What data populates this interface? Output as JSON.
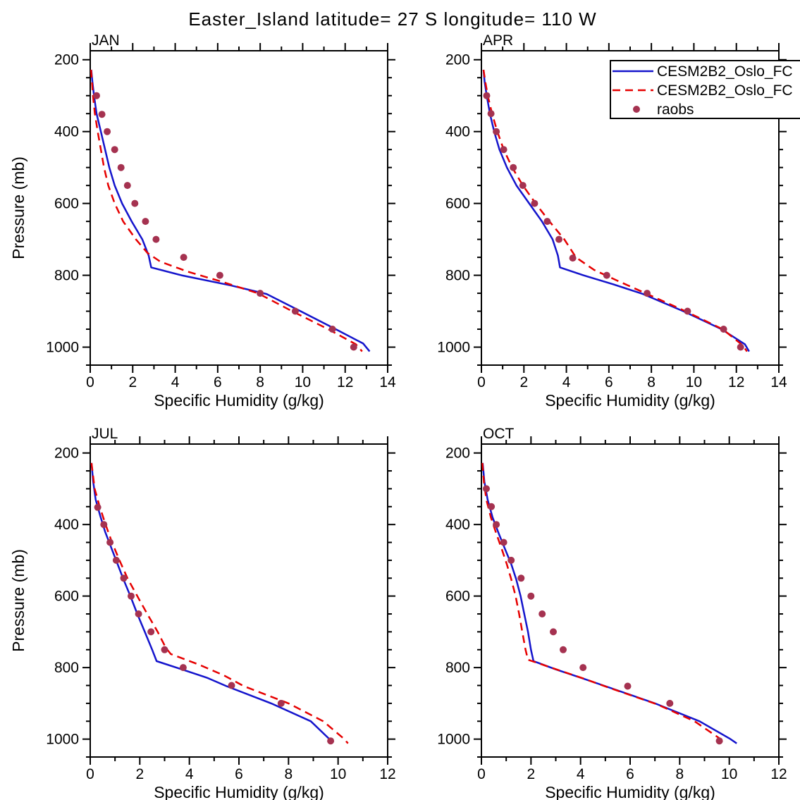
{
  "title": "Easter_Island  latitude= 27 S longitude= 110 W",
  "colors": {
    "model_solid": "#1414cc",
    "model_dashed": "#e60000",
    "obs": "#a53250"
  },
  "legend": {
    "entries": [
      {
        "label": "CESM2B2_Oslo_FC",
        "swatch": "line-solid",
        "color": "#1414cc"
      },
      {
        "label": "CESM2B2_Oslo_FC",
        "swatch": "line-dashed",
        "color": "#e60000"
      },
      {
        "label": "raobs",
        "swatch": "dot",
        "color": "#a53250"
      }
    ]
  },
  "chart_data": [
    {
      "type": "line",
      "panel": "JAN",
      "xlabel": "Specific Humidity (g/kg)",
      "ylabel": "Pressure (mb)",
      "xlim": [
        0,
        14
      ],
      "xticks": [
        0,
        2,
        4,
        6,
        8,
        10,
        12,
        14
      ],
      "xminor_step": 1,
      "ylim": [
        175,
        1050
      ],
      "yticks": [
        200,
        400,
        600,
        800,
        1000
      ],
      "yminor_step": 50,
      "grid": false,
      "series": [
        {
          "name": "CESM2B2_Oslo_FC (solid)",
          "style": "solid",
          "color": "#1414cc",
          "points": [
            [
              0.05,
              228
            ],
            [
              0.1,
              260
            ],
            [
              0.18,
              300
            ],
            [
              0.3,
              350
            ],
            [
              0.5,
              400
            ],
            [
              0.7,
              450
            ],
            [
              0.9,
              500
            ],
            [
              1.15,
              550
            ],
            [
              1.5,
              600
            ],
            [
              1.95,
              650
            ],
            [
              2.45,
              700
            ],
            [
              2.75,
              745
            ],
            [
              2.87,
              778
            ],
            [
              4.3,
              800
            ],
            [
              6.6,
              828
            ],
            [
              8.3,
              852
            ],
            [
              9.9,
              900
            ],
            [
              11.55,
              950
            ],
            [
              12.85,
              990
            ],
            [
              13.15,
              1012
            ]
          ]
        },
        {
          "name": "CESM2B2_Oslo_FC (dashed)",
          "style": "dashed",
          "color": "#e60000",
          "points": [
            [
              0.04,
              228
            ],
            [
              0.08,
              260
            ],
            [
              0.13,
              300
            ],
            [
              0.22,
              350
            ],
            [
              0.35,
              400
            ],
            [
              0.5,
              450
            ],
            [
              0.65,
              500
            ],
            [
              0.85,
              550
            ],
            [
              1.15,
              600
            ],
            [
              1.55,
              650
            ],
            [
              2.15,
              700
            ],
            [
              2.7,
              738
            ],
            [
              3.3,
              762
            ],
            [
              4.6,
              790
            ],
            [
              6.2,
              818
            ],
            [
              7.9,
              850
            ],
            [
              9.5,
              900
            ],
            [
              11.2,
              950
            ],
            [
              12.5,
              992
            ],
            [
              12.8,
              1012
            ]
          ]
        },
        {
          "name": "raobs",
          "style": "scatter",
          "color": "#a53250",
          "points": [
            [
              0.3,
              300
            ],
            [
              0.55,
              352
            ],
            [
              0.8,
              400
            ],
            [
              1.15,
              450
            ],
            [
              1.45,
              500
            ],
            [
              1.75,
              550
            ],
            [
              2.1,
              600
            ],
            [
              2.6,
              650
            ],
            [
              3.1,
              700
            ],
            [
              4.4,
              750
            ],
            [
              6.1,
              800
            ],
            [
              8.0,
              850
            ],
            [
              9.65,
              900
            ],
            [
              11.4,
              950
            ],
            [
              12.4,
              1000
            ]
          ]
        }
      ]
    },
    {
      "type": "line",
      "panel": "APR",
      "xlabel": "Specific Humidity (g/kg)",
      "ylabel": "",
      "xlim": [
        0,
        14
      ],
      "xticks": [
        0,
        2,
        4,
        6,
        8,
        10,
        12,
        14
      ],
      "xminor_step": 1,
      "ylim": [
        175,
        1050
      ],
      "yticks": [
        200,
        400,
        600,
        800,
        1000
      ],
      "yminor_step": 50,
      "grid": false,
      "series": [
        {
          "name": "CESM2B2_Oslo_FC (solid)",
          "style": "solid",
          "color": "#1414cc",
          "points": [
            [
              0.1,
              228
            ],
            [
              0.15,
              260
            ],
            [
              0.25,
              300
            ],
            [
              0.4,
              350
            ],
            [
              0.6,
              400
            ],
            [
              0.85,
              450
            ],
            [
              1.2,
              500
            ],
            [
              1.65,
              550
            ],
            [
              2.25,
              600
            ],
            [
              2.85,
              650
            ],
            [
              3.35,
              700
            ],
            [
              3.6,
              745
            ],
            [
              3.7,
              778
            ],
            [
              4.8,
              800
            ],
            [
              6.2,
              825
            ],
            [
              7.6,
              852
            ],
            [
              9.5,
              900
            ],
            [
              11.3,
              950
            ],
            [
              12.4,
              992
            ],
            [
              12.6,
              1012
            ]
          ]
        },
        {
          "name": "CESM2B2_Oslo_FC (dashed)",
          "style": "dashed",
          "color": "#e60000",
          "points": [
            [
              0.1,
              228
            ],
            [
              0.18,
              260
            ],
            [
              0.3,
              300
            ],
            [
              0.5,
              350
            ],
            [
              0.75,
              400
            ],
            [
              1.05,
              450
            ],
            [
              1.45,
              500
            ],
            [
              1.95,
              550
            ],
            [
              2.55,
              600
            ],
            [
              3.2,
              650
            ],
            [
              3.9,
              700
            ],
            [
              4.45,
              750
            ],
            [
              5.3,
              785
            ],
            [
              6.4,
              815
            ],
            [
              7.8,
              852
            ],
            [
              9.6,
              900
            ],
            [
              11.35,
              950
            ],
            [
              12.3,
              995
            ],
            [
              12.5,
              1012
            ]
          ]
        },
        {
          "name": "raobs",
          "style": "scatter",
          "color": "#a53250",
          "points": [
            [
              0.25,
              300
            ],
            [
              0.45,
              350
            ],
            [
              0.7,
              400
            ],
            [
              1.05,
              450
            ],
            [
              1.5,
              500
            ],
            [
              1.95,
              550
            ],
            [
              2.5,
              600
            ],
            [
              3.1,
              650
            ],
            [
              3.65,
              700
            ],
            [
              4.3,
              752
            ],
            [
              5.9,
              800
            ],
            [
              7.8,
              850
            ],
            [
              9.7,
              900
            ],
            [
              11.4,
              950
            ],
            [
              12.2,
              1000
            ]
          ]
        }
      ]
    },
    {
      "type": "line",
      "panel": "JUL",
      "xlabel": "Specific Humidity (g/kg)",
      "ylabel": "Pressure (mb)",
      "xlim": [
        0,
        12
      ],
      "xticks": [
        0,
        2,
        4,
        6,
        8,
        10,
        12
      ],
      "xminor_step": 1,
      "ylim": [
        175,
        1050
      ],
      "yticks": [
        200,
        400,
        600,
        800,
        1000
      ],
      "yminor_step": 50,
      "grid": false,
      "series": [
        {
          "name": "CESM2B2_Oslo_FC (solid)",
          "style": "solid",
          "color": "#1414cc",
          "points": [
            [
              0.05,
              228
            ],
            [
              0.12,
              280
            ],
            [
              0.22,
              330
            ],
            [
              0.4,
              375
            ],
            [
              0.6,
              420
            ],
            [
              0.85,
              465
            ],
            [
              1.1,
              510
            ],
            [
              1.35,
              555
            ],
            [
              1.62,
              600
            ],
            [
              1.9,
              650
            ],
            [
              2.2,
              700
            ],
            [
              2.5,
              750
            ],
            [
              2.68,
              782
            ],
            [
              3.7,
              805
            ],
            [
              4.7,
              828
            ],
            [
              5.5,
              852
            ],
            [
              7.3,
              900
            ],
            [
              8.9,
              950
            ],
            [
              9.65,
              1000
            ],
            [
              9.75,
              1012
            ]
          ]
        },
        {
          "name": "CESM2B2_Oslo_FC (dashed)",
          "style": "dashed",
          "color": "#e60000",
          "points": [
            [
              0.05,
              228
            ],
            [
              0.18,
              300
            ],
            [
              0.38,
              350
            ],
            [
              0.62,
              400
            ],
            [
              0.88,
              450
            ],
            [
              1.18,
              500
            ],
            [
              1.5,
              550
            ],
            [
              1.9,
              600
            ],
            [
              2.3,
              650
            ],
            [
              2.72,
              700
            ],
            [
              3.05,
              745
            ],
            [
              3.25,
              762
            ],
            [
              4.4,
              792
            ],
            [
              5.4,
              822
            ],
            [
              6.2,
              852
            ],
            [
              8.0,
              900
            ],
            [
              9.4,
              950
            ],
            [
              10.25,
              1000
            ],
            [
              10.4,
              1012
            ]
          ]
        },
        {
          "name": "raobs",
          "style": "scatter",
          "color": "#a53250",
          "points": [
            [
              0.3,
              352
            ],
            [
              0.55,
              400
            ],
            [
              0.8,
              450
            ],
            [
              1.05,
              500
            ],
            [
              1.35,
              550
            ],
            [
              1.65,
              600
            ],
            [
              1.95,
              650
            ],
            [
              2.45,
              700
            ],
            [
              3.0,
              750
            ],
            [
              3.75,
              800
            ],
            [
              5.7,
              850
            ],
            [
              7.7,
              900
            ],
            [
              9.7,
              1005
            ]
          ]
        }
      ]
    },
    {
      "type": "line",
      "panel": "OCT",
      "xlabel": "Specific Humidity (g/kg)",
      "ylabel": "",
      "xlim": [
        0,
        12
      ],
      "xticks": [
        0,
        2,
        4,
        6,
        8,
        10,
        12
      ],
      "xminor_step": 1,
      "ylim": [
        175,
        1050
      ],
      "yticks": [
        200,
        400,
        600,
        800,
        1000
      ],
      "yminor_step": 50,
      "grid": false,
      "series": [
        {
          "name": "CESM2B2_Oslo_FC (solid)",
          "style": "solid",
          "color": "#1414cc",
          "points": [
            [
              0.05,
              228
            ],
            [
              0.12,
              280
            ],
            [
              0.25,
              330
            ],
            [
              0.45,
              380
            ],
            [
              0.7,
              425
            ],
            [
              0.95,
              468
            ],
            [
              1.2,
              510
            ],
            [
              1.4,
              552
            ],
            [
              1.58,
              600
            ],
            [
              1.73,
              650
            ],
            [
              1.88,
              700
            ],
            [
              2.0,
              750
            ],
            [
              2.1,
              782
            ],
            [
              3.0,
              805
            ],
            [
              4.0,
              828
            ],
            [
              5.0,
              852
            ],
            [
              7.0,
              900
            ],
            [
              8.8,
              950
            ],
            [
              10.05,
              1000
            ],
            [
              10.3,
              1012
            ]
          ]
        },
        {
          "name": "CESM2B2_Oslo_FC (dashed)",
          "style": "dashed",
          "color": "#e60000",
          "points": [
            [
              0.04,
              228
            ],
            [
              0.1,
              280
            ],
            [
              0.2,
              330
            ],
            [
              0.38,
              380
            ],
            [
              0.6,
              425
            ],
            [
              0.82,
              468
            ],
            [
              1.02,
              510
            ],
            [
              1.2,
              552
            ],
            [
              1.38,
              600
            ],
            [
              1.52,
              650
            ],
            [
              1.65,
              700
            ],
            [
              1.78,
              750
            ],
            [
              1.88,
              778
            ],
            [
              2.9,
              802
            ],
            [
              4.1,
              830
            ],
            [
              5.1,
              855
            ],
            [
              7.1,
              903
            ],
            [
              8.6,
              950
            ],
            [
              9.65,
              1000
            ],
            [
              9.8,
              1012
            ]
          ]
        },
        {
          "name": "raobs",
          "style": "scatter",
          "color": "#a53250",
          "points": [
            [
              0.2,
              300
            ],
            [
              0.4,
              350
            ],
            [
              0.6,
              400
            ],
            [
              0.9,
              450
            ],
            [
              1.2,
              500
            ],
            [
              1.6,
              550
            ],
            [
              2.0,
              600
            ],
            [
              2.45,
              650
            ],
            [
              2.9,
              700
            ],
            [
              3.3,
              750
            ],
            [
              4.1,
              800
            ],
            [
              5.9,
              852
            ],
            [
              7.6,
              900
            ],
            [
              9.6,
              1005
            ]
          ]
        }
      ]
    }
  ]
}
